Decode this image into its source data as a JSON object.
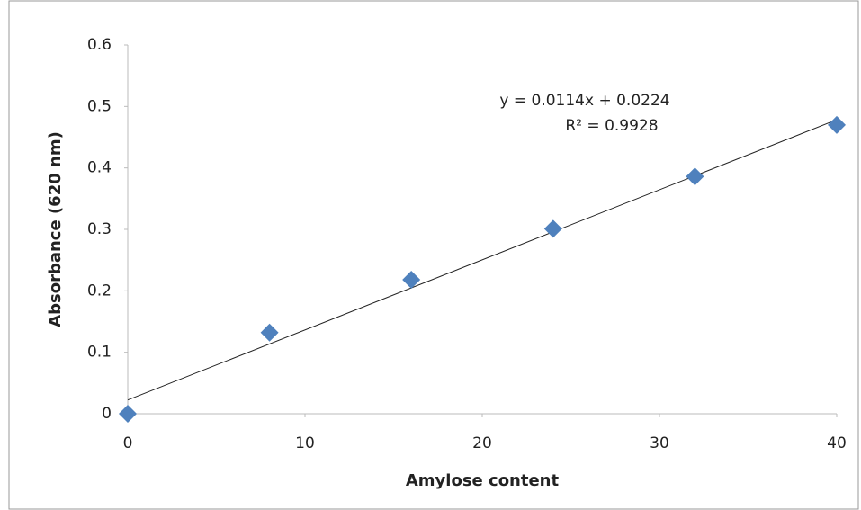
{
  "chart_data": {
    "type": "scatter",
    "x_label": "Amylose content",
    "y_label": "Absorbance (620 nm)",
    "x": [
      0,
      8,
      16,
      24,
      32,
      40
    ],
    "values": [
      0,
      0.132,
      0.218,
      0.301,
      0.386,
      0.47
    ],
    "color": "#4f81bd",
    "xlim": [
      0,
      40
    ],
    "xticks": [
      0,
      10,
      20,
      30,
      40
    ],
    "ylim": [
      0,
      0.6
    ],
    "yticks": [
      0,
      0.1,
      0.2,
      0.3,
      0.4,
      0.5,
      0.6
    ],
    "grid": false,
    "trendline": {
      "slope": 0.0114,
      "intercept": 0.0224,
      "label": "y = 0.0114x + 0.0224",
      "r2_label": "R² = 0.9928"
    }
  }
}
